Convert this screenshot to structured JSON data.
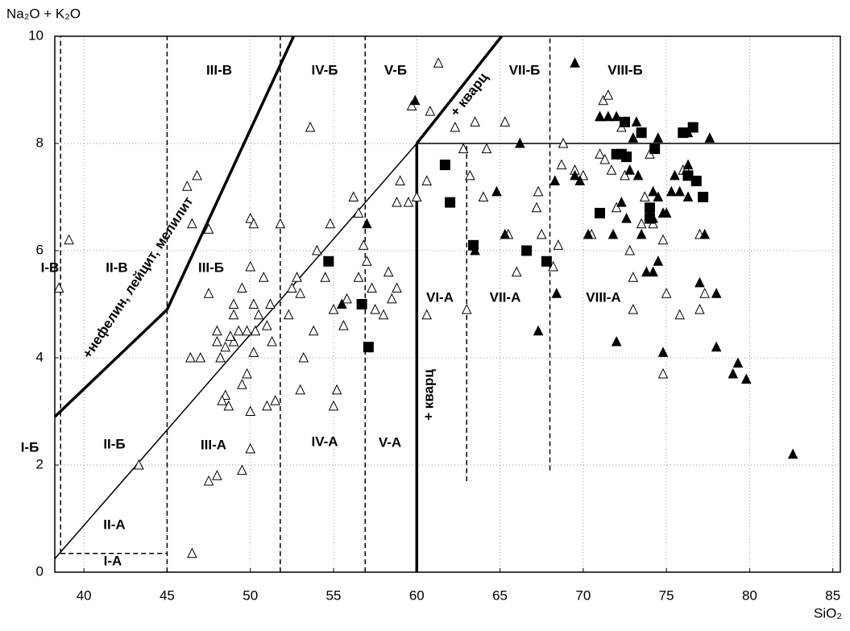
{
  "chart_data": {
    "type": "scatter",
    "x_label": "SiO₂",
    "y_label": "Na₂O + K₂O",
    "xlim": [
      38.25,
      85.45
    ],
    "ylim": [
      0,
      10
    ],
    "xticks": [
      40,
      45,
      50,
      55,
      60,
      65,
      70,
      75,
      80,
      85
    ],
    "yticks": [
      0,
      2,
      4,
      6,
      8,
      10
    ],
    "grid": true,
    "series": [
      {
        "marker": "triangle",
        "filled": false,
        "color": "#000000",
        "x": [
          39.1,
          38.5,
          43.3,
          46.5,
          46.4,
          46.2,
          46.8,
          46.5,
          47.5,
          47.5,
          47.5,
          48.0,
          48.0,
          48.2,
          48.5,
          48.5,
          48.3,
          48.7,
          49.0,
          49.0,
          49.3,
          49.5,
          49.8,
          49.5,
          49.5,
          50.0,
          50.0,
          50.2,
          50.2,
          50.0,
          50.2,
          50.3,
          50.5,
          50.0,
          49.0,
          48.8,
          49.8,
          50.8,
          51.2,
          51.0,
          51.3,
          51.0,
          51.5,
          51.8,
          52.3,
          52.5,
          52.8,
          53.0,
          53.0,
          53.6,
          53.2,
          53.8,
          54.0,
          54.5,
          55.0,
          54.8,
          55.0,
          55.2,
          55.6,
          55.8,
          56.2,
          56.5,
          56.8,
          56.5,
          57.0,
          57.3,
          57.5,
          58.0,
          58.3,
          58.5,
          58.8,
          59.0,
          59.5,
          59.7,
          60.6,
          60.8,
          60.6,
          61.3,
          62.3,
          62.8,
          63.2,
          63.5,
          64.0,
          64.2,
          65.3,
          65.5,
          66.0,
          67.2,
          67.3,
          67.5,
          68.2,
          68.5,
          68.7,
          68.8,
          69.5,
          70.0,
          70.5,
          71.0,
          71.0,
          71.2,
          71.5,
          71.3,
          71.7,
          72.0,
          72.3,
          72.5,
          72.8,
          73.0,
          73.0,
          73.5,
          73.7,
          74.0,
          74.2,
          74.8,
          75.0,
          74.8,
          75.8,
          76.0,
          76.2,
          77.0,
          77.3,
          77.0,
          63.0,
          60.0,
          58.8,
          47.0,
          48.0
        ],
        "values": [
          6.2,
          5.3,
          2.0,
          0.35,
          4.0,
          7.2,
          7.4,
          6.5,
          6.4,
          5.2,
          1.7,
          1.8,
          4.5,
          4.0,
          4.2,
          3.3,
          3.2,
          3.1,
          5.0,
          4.3,
          4.5,
          3.5,
          4.5,
          5.3,
          1.9,
          5.7,
          3.0,
          4.1,
          5.0,
          6.6,
          6.5,
          4.5,
          4.8,
          2.3,
          4.8,
          4.4,
          3.7,
          5.5,
          5.0,
          4.6,
          4.3,
          3.1,
          3.2,
          6.5,
          4.8,
          5.3,
          5.5,
          5.2,
          3.4,
          8.3,
          4.0,
          4.5,
          6.0,
          5.5,
          4.9,
          6.5,
          3.1,
          3.4,
          4.6,
          5.1,
          7.0,
          5.5,
          6.1,
          6.7,
          5.8,
          5.3,
          4.9,
          4.8,
          5.6,
          5.1,
          6.9,
          7.3,
          6.9,
          8.7,
          7.3,
          8.6,
          4.8,
          9.5,
          8.3,
          7.9,
          7.4,
          8.4,
          7.0,
          7.9,
          8.4,
          6.3,
          5.6,
          6.8,
          7.1,
          6.3,
          5.7,
          6.1,
          7.6,
          8.0,
          7.5,
          7.4,
          6.3,
          7.8,
          8.5,
          8.8,
          8.9,
          7.7,
          7.5,
          6.8,
          8.3,
          7.4,
          6.0,
          4.9,
          5.5,
          6.5,
          7.0,
          7.8,
          6.5,
          6.2,
          5.2,
          3.7,
          4.8,
          7.5,
          7.5,
          6.3,
          5.2,
          4.9,
          4.9,
          7.0,
          5.3,
          4.0,
          4.3
        ]
      },
      {
        "marker": "triangle",
        "filled": true,
        "color": "#000000",
        "x": [
          59.9,
          57.0,
          55.5,
          63.5,
          64.8,
          65.3,
          66.2,
          67.3,
          68.3,
          68.4,
          69.5,
          69.8,
          69.5,
          70.3,
          71.0,
          71.5,
          71.8,
          72.0,
          72.0,
          72.3,
          72.5,
          72.6,
          72.8,
          73.0,
          73.2,
          73.3,
          73.5,
          73.5,
          73.8,
          74.0,
          74.2,
          74.2,
          74.5,
          74.5,
          74.5,
          74.8,
          74.8,
          75.3,
          75.5,
          75.8,
          76.3,
          76.3,
          76.3,
          77.0,
          77.3,
          77.6,
          78.0,
          78.0,
          79.0,
          79.3,
          79.8,
          82.6,
          74.2,
          75.0
        ],
        "values": [
          8.8,
          6.5,
          5.0,
          6.0,
          7.1,
          6.3,
          8.0,
          4.5,
          7.3,
          5.2,
          7.4,
          7.3,
          9.5,
          6.3,
          8.5,
          8.5,
          6.3,
          4.3,
          8.5,
          6.9,
          8.4,
          6.6,
          7.5,
          8.1,
          8.4,
          7.4,
          8.2,
          6.3,
          5.6,
          6.7,
          7.1,
          5.6,
          5.8,
          7.0,
          8.1,
          6.7,
          4.1,
          7.1,
          7.4,
          7.1,
          8.2,
          7.0,
          7.6,
          5.4,
          6.3,
          8.1,
          4.2,
          5.2,
          3.7,
          3.9,
          3.6,
          2.2,
          6.6,
          6.7
        ]
      },
      {
        "marker": "square",
        "filled": true,
        "color": "#000000",
        "x": [
          54.7,
          56.7,
          57.1,
          61.7,
          62.0,
          63.4,
          66.6,
          67.8,
          71.0,
          72.0,
          72.3,
          72.5,
          73.5,
          74.0,
          74.0,
          74.3,
          76.0,
          76.6,
          76.3,
          76.8,
          77.2,
          72.6
        ],
        "values": [
          5.8,
          5.0,
          4.2,
          7.6,
          6.9,
          6.1,
          6.0,
          5.8,
          6.7,
          7.8,
          7.8,
          8.4,
          8.2,
          6.8,
          6.6,
          7.9,
          8.2,
          8.3,
          7.4,
          7.3,
          7.0,
          7.75
        ]
      }
    ],
    "boundaries": [
      {
        "style": "thick",
        "x": [
          38.25,
          45,
          52.6
        ],
        "y": [
          2.9,
          4.9,
          10
        ]
      },
      {
        "style": "thin",
        "x": [
          38.25,
          60
        ],
        "y": [
          0.25,
          8
        ]
      },
      {
        "style": "thick",
        "x": [
          60,
          65.1
        ],
        "y": [
          8,
          10
        ]
      },
      {
        "style": "thick",
        "x": [
          60,
          60
        ],
        "y": [
          0,
          8
        ]
      },
      {
        "style": "thin",
        "x": [
          60,
          85.45
        ],
        "y": [
          8,
          8
        ]
      },
      {
        "style": "dashed",
        "x": [
          38.6,
          38.6
        ],
        "y": [
          0.35,
          10
        ]
      },
      {
        "style": "dashed",
        "x": [
          38.6,
          45
        ],
        "y": [
          0.35,
          0.35
        ]
      },
      {
        "style": "dashed",
        "x": [
          45,
          45
        ],
        "y": [
          0,
          10
        ]
      },
      {
        "style": "dashed",
        "x": [
          51.8,
          51.8
        ],
        "y": [
          0,
          10
        ]
      },
      {
        "style": "dashed",
        "x": [
          56.9,
          56.9
        ],
        "y": [
          0,
          10
        ]
      },
      {
        "style": "dashed",
        "x": [
          63,
          63
        ],
        "y": [
          1.7,
          8
        ]
      },
      {
        "style": "dashed",
        "x": [
          68,
          68
        ],
        "y": [
          1.9,
          10
        ]
      }
    ],
    "zone_labels": [
      "I-В",
      "II-В",
      "III-В",
      "III-Б",
      "IV-Б",
      "V-Б",
      "VII-Б",
      "VIII-Б",
      "VI-А",
      "VII-А",
      "VIII-А",
      "I-Б",
      "II-Б",
      "III-А",
      "IV-А",
      "V-А",
      "II-А",
      "I-А"
    ],
    "annotations": [
      "+нефелин, лейцит, мелилит",
      "+ кварц",
      "+ кварц"
    ]
  }
}
